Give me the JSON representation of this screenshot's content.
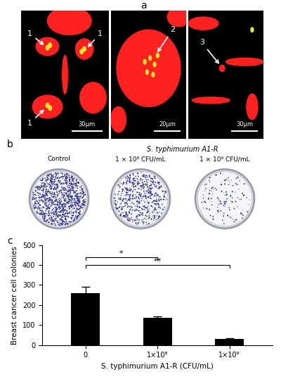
{
  "panel_labels": [
    "a",
    "b",
    "c"
  ],
  "panel_a": {
    "images": [
      {
        "markers": [
          "1",
          "1",
          "1"
        ],
        "scale_bar": "30μm"
      },
      {
        "markers": [
          "2"
        ],
        "scale_bar": "20μm"
      },
      {
        "markers": [
          "3"
        ],
        "scale_bar": "30μm"
      }
    ]
  },
  "panel_b": {
    "group_label": "S. typhimurium A1-R",
    "dishes": [
      "Control",
      "1 × 10⁸ CFU/mL",
      "1 × 10⁹ CFU/mL"
    ]
  },
  "chart_data": {
    "type": "bar",
    "categories": [
      "0",
      "1×10⁸",
      "1×10⁹"
    ],
    "values": [
      260,
      135,
      30
    ],
    "errors": [
      30,
      8,
      5
    ],
    "color": "#000000",
    "xlabel": "S. typhimurium A1-R (CFU/mL)",
    "ylabel": "Breast cancer cell colonies",
    "ylim": [
      0,
      500
    ],
    "yticks": [
      0,
      100,
      200,
      300,
      400,
      500
    ],
    "annotations": [
      {
        "text": "*",
        "from": 0,
        "to": 1,
        "y": 440
      },
      {
        "text": "**",
        "from": 0,
        "to": 2,
        "y": 400
      }
    ]
  }
}
